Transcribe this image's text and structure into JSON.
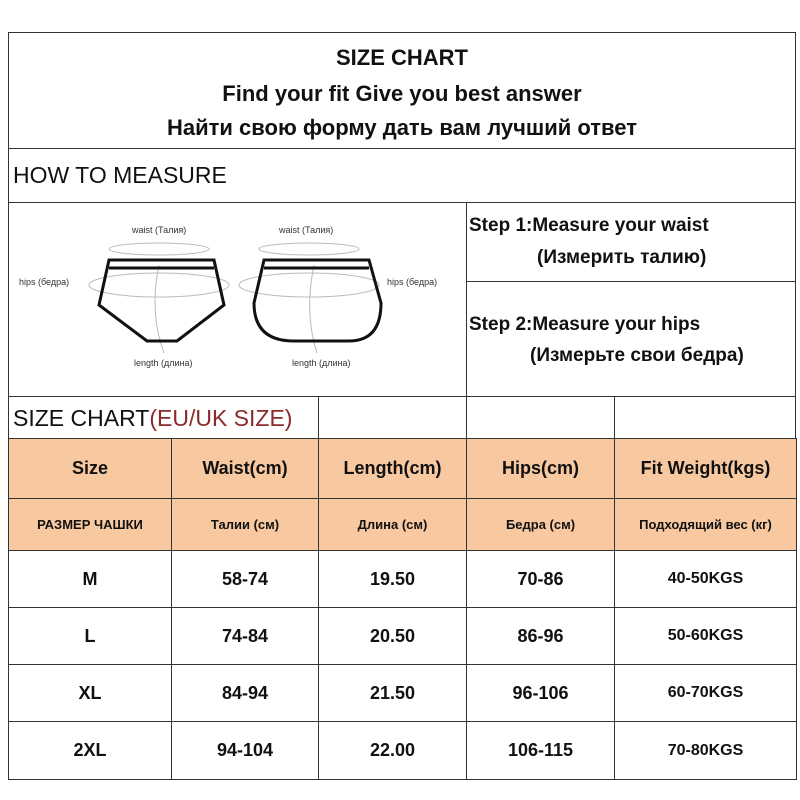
{
  "title": {
    "line1": "SIZE CHART",
    "line2": "Find your fit Give you best answer",
    "line3": "Найти свою форму дать вам лучший ответ"
  },
  "how_to_measure": "HOW TO MEASURE",
  "diagram": {
    "waist": "waist (Талия)",
    "hips": "hips (бедра)",
    "length": "length (длина)"
  },
  "steps": [
    {
      "en": "Step 1:Measure your waist",
      "ru": "(Измерить талию)"
    },
    {
      "en": "Step 2:Measure your hips",
      "ru": "(Измерьте свои бедра)"
    }
  ],
  "size_chart": {
    "label": "SIZE CHART",
    "sub": "(EU/UK SIZE)",
    "accent": "#8b2a2a",
    "header_bg": "#f8c9a0"
  },
  "headers": [
    "Size",
    "Waist(cm)",
    "Length(cm)",
    "Hips(cm)",
    "Fit  Weight(kgs)"
  ],
  "headers_ru": [
    "РАЗМЕР ЧАШКИ",
    "Талии (см)",
    "Длина (см)",
    "Бедра (см)",
    "Подходящий вес (кг)"
  ],
  "rows": [
    [
      "M",
      "58-74",
      "19.50",
      "70-86",
      "40-50KGS"
    ],
    [
      "L",
      "74-84",
      "20.50",
      "86-96",
      "50-60KGS"
    ],
    [
      "XL",
      "84-94",
      "21.50",
      "96-106",
      "60-70KGS"
    ],
    [
      "2XL",
      "94-104",
      "22.00",
      "106-115",
      "70-80KGS"
    ]
  ]
}
